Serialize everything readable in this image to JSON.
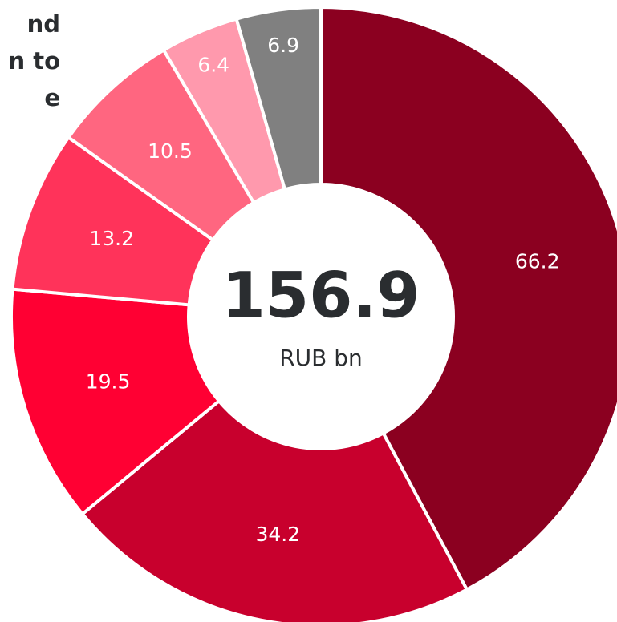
{
  "chart_data": {
    "type": "donut",
    "title_lines": [
      "nd",
      "n to",
      "e"
    ],
    "categories": [
      null,
      null,
      null,
      null,
      null,
      null,
      null
    ],
    "values": [
      66.2,
      34.2,
      19.5,
      13.2,
      10.5,
      6.4,
      6.9
    ],
    "colors": [
      "#8b0020",
      "#c8002d",
      "#ff0033",
      "#ff335a",
      "#ff6680",
      "#ff99ad",
      "#808080"
    ],
    "total": 156.9,
    "unit": "RUB bn"
  }
}
